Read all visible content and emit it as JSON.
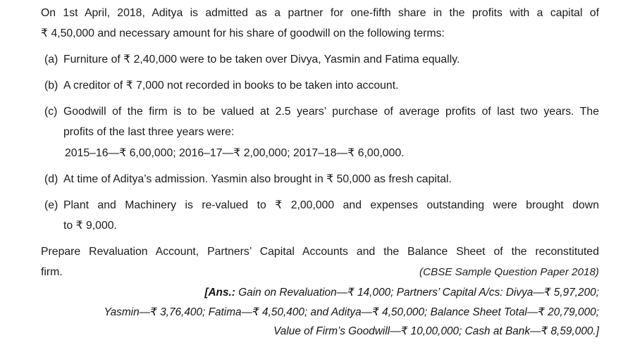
{
  "page": {
    "intro": {
      "line1": "On 1st April, 2018, Aditya is admitted as a partner for one-fifth share in the profits with a capital of",
      "line2": "₹ 4,50,000 and necessary amount for his share of goodwill on the following terms:"
    },
    "items": [
      {
        "label": "(a)",
        "line1": "Furniture of ₹ 2,40,000 were to be taken over Divya, Yasmin and Fatima equally."
      },
      {
        "label": "(b)",
        "line1": "A creditor of ₹ 7,000 not recorded in books to be taken into account."
      },
      {
        "label": "(c)",
        "line1": "Goodwill of the firm is to be valued at 2.5 years’ purchase of average profits of last two years. The",
        "line2": "profits of the last three years were:",
        "sub": "2015–16—₹ 6,00,000; 2016–17—₹ 2,00,000; 2017–18—₹ 6,00,000."
      },
      {
        "label": "(d)",
        "line1": "At time of Aditya’s admission. Yasmin also brought in ₹ 50,000 as fresh capital."
      },
      {
        "label": "(e)",
        "line1": "Plant and Machinery is re-valued to ₹ 2,00,000 and expenses outstanding were brought down",
        "line2": "to ₹ 9,000."
      }
    ],
    "instruction": {
      "line1": "Prepare Revaluation Account, Partners’ Capital Accounts and the Balance Sheet of the reconstituted",
      "line2": "firm."
    },
    "source": "(CBSE Sample Question Paper 2018)",
    "answer": {
      "prefix": "[Ans.:",
      "line1": "Gain on Revaluation—₹ 14,000; Partners’ Capital A/cs: Divya—₹ 5,97,200;",
      "line2": "Yasmin—₹ 3,76,400; Fatima—₹ 4,50,400; and Aditya—₹ 4,50,000;  Balance Sheet Total—₹ 20,79,000;",
      "line3": "Value of Firm’s Goodwill—₹ 10,00,000; Cash at Bank—₹ 8,59,000.]"
    }
  }
}
